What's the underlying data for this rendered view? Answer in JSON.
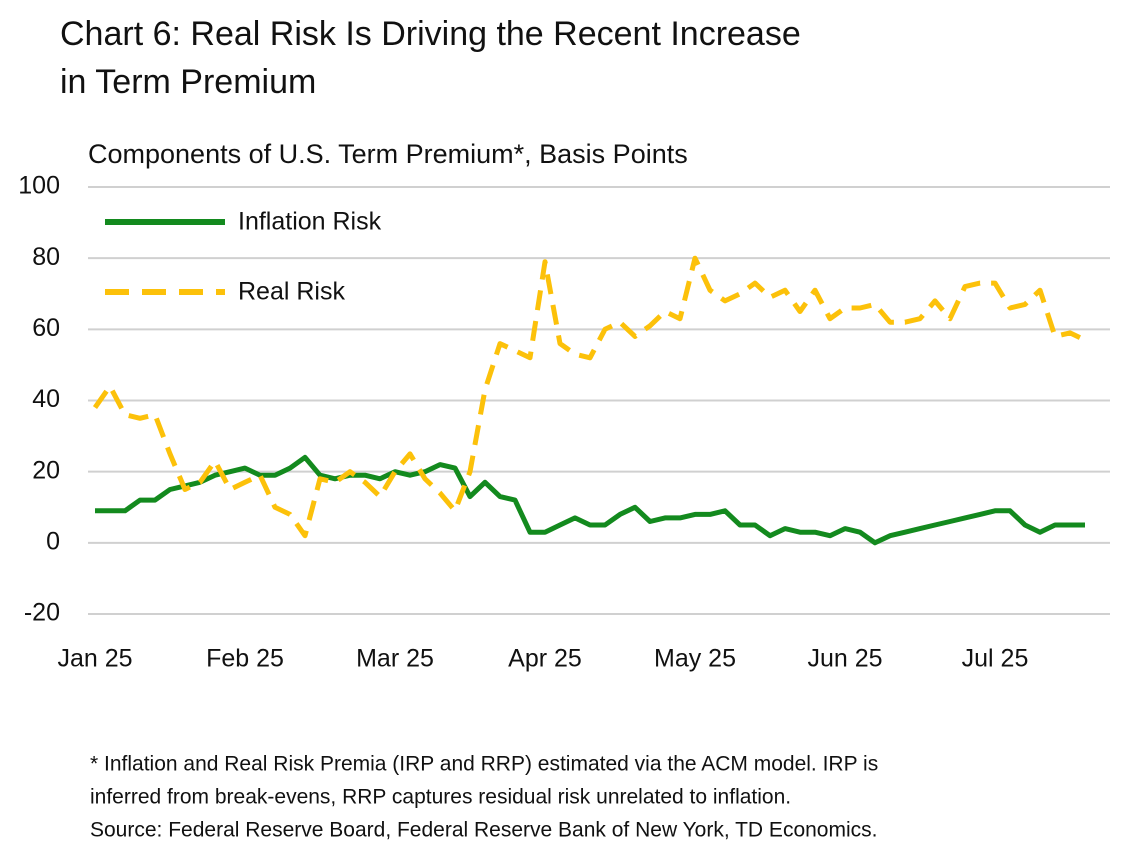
{
  "chart_data": {
    "type": "line",
    "title": [
      "Chart 6: Real Risk Is Driving the Recent Increase",
      "in Term Premium"
    ],
    "subtitle": "Components of U.S. Term Premium*, Basis Points",
    "notes": [
      "* Inflation and Real Risk Premia (IRP and RRP) estimated via the ACM model. IRP is",
      "inferred from break-evens, RRP captures residual risk unrelated to inflation.",
      "Source: Federal Reserve Board, Federal Reserve Bank of New York, TD Economics."
    ],
    "categories": [
      "Jan 25",
      null,
      null,
      null,
      null,
      null,
      null,
      null,
      null,
      null,
      "Feb 25",
      null,
      null,
      null,
      null,
      null,
      null,
      null,
      null,
      null,
      "Mar 25",
      null,
      null,
      null,
      null,
      null,
      null,
      null,
      null,
      null,
      "Apr 25",
      null,
      null,
      null,
      null,
      null,
      null,
      null,
      null,
      null,
      "May 25",
      null,
      null,
      null,
      null,
      null,
      null,
      null,
      null,
      null,
      "Jun 25",
      null,
      null,
      null,
      null,
      null,
      null,
      null,
      null,
      null,
      "Jul 25",
      null,
      null,
      null,
      null,
      null,
      null
    ],
    "series": [
      {
        "name": "Inflation Risk",
        "color": "#138a1e",
        "dash": false,
        "values": [
          9,
          9,
          9,
          12,
          12,
          15,
          16,
          17,
          19,
          20,
          21,
          19,
          19,
          21,
          24,
          19,
          18,
          19,
          19,
          18,
          20,
          19,
          20,
          22,
          21,
          13,
          17,
          13,
          12,
          3,
          3,
          5,
          7,
          5,
          5,
          8,
          10,
          6,
          7,
          7,
          8,
          8,
          9,
          5,
          5,
          2,
          4,
          3,
          3,
          2,
          4,
          3,
          0,
          2,
          3,
          4,
          5,
          6,
          7,
          8,
          9,
          9,
          5,
          3,
          5,
          5,
          5
        ]
      },
      {
        "name": "Real Risk",
        "color": "#fcc10a",
        "dash": true,
        "values": [
          38,
          44,
          36,
          35,
          36,
          25,
          15,
          17,
          23,
          15,
          17,
          19,
          10,
          8,
          2,
          18,
          17,
          20,
          17,
          13,
          20,
          25,
          18,
          14,
          9,
          20,
          43,
          56,
          54,
          52,
          79,
          56,
          53,
          52,
          60,
          62,
          58,
          61,
          65,
          63,
          80,
          71,
          68,
          70,
          73,
          69,
          71,
          65,
          71,
          63,
          66,
          66,
          67,
          62,
          62,
          63,
          68,
          63,
          72,
          73,
          73,
          66,
          67,
          71,
          58,
          59,
          57
        ]
      }
    ],
    "ylim": [
      -20,
      100
    ],
    "yticks": [
      -20,
      0,
      20,
      40,
      60,
      80,
      100
    ],
    "grid": true,
    "legend": "top-left"
  }
}
